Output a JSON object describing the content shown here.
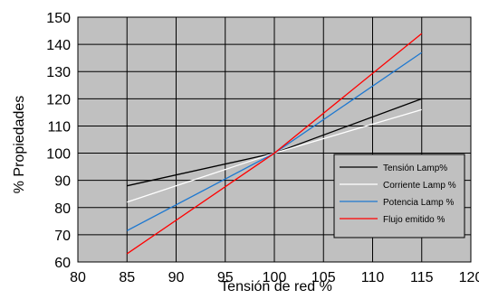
{
  "chart_data": {
    "type": "line",
    "title": "",
    "xlabel": "Tensión de red %",
    "ylabel": "% Propiedades",
    "xlim": [
      80,
      120
    ],
    "ylim": [
      60,
      150
    ],
    "xticks": [
      80,
      85,
      90,
      95,
      100,
      105,
      110,
      115,
      120
    ],
    "yticks": [
      60,
      70,
      80,
      90,
      100,
      110,
      120,
      130,
      140,
      150
    ],
    "grid": true,
    "plot_background": "#c0c0c0",
    "legend_position": "bottom-right",
    "series": [
      {
        "name": "Tensión Lamp%",
        "color": "#000000",
        "x": [
          85,
          100,
          115
        ],
        "y": [
          88,
          100,
          120
        ]
      },
      {
        "name": "Corriente Lamp %",
        "color": "#ffffff",
        "x": [
          85,
          100,
          115
        ],
        "y": [
          82,
          100,
          116
        ]
      },
      {
        "name": "Potencia Lamp %",
        "color": "#1e78d0",
        "x": [
          85,
          100,
          115
        ],
        "y": [
          71.5,
          100,
          137
        ]
      },
      {
        "name": "Flujo emitido %",
        "color": "#ff0000",
        "x": [
          85,
          100,
          115
        ],
        "y": [
          63,
          100,
          144
        ]
      }
    ]
  }
}
